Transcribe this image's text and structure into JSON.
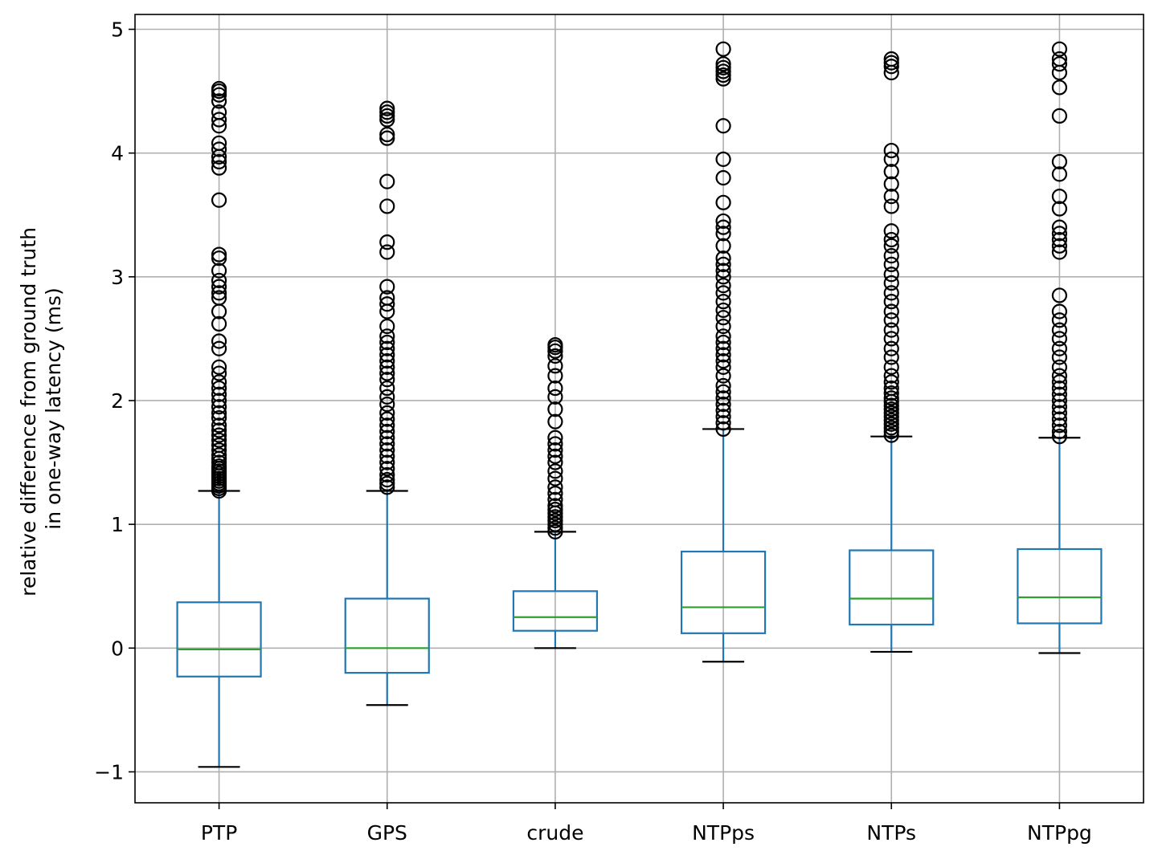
{
  "chart_data": {
    "type": "box",
    "title": "",
    "xlabel": "",
    "ylabel": [
      "relative difference from ground truth",
      "in one-way latency (ms)"
    ],
    "ylim": [
      -1.25,
      5.12
    ],
    "yticks": [
      -1,
      0,
      1,
      2,
      3,
      4,
      5
    ],
    "ytick_labels": [
      "−1",
      "0",
      "1",
      "2",
      "3",
      "4",
      "5"
    ],
    "grid": true,
    "colors": {
      "box": "#1f77b4",
      "median": "#2ca02c",
      "cap": "#000000",
      "flier": "#000000",
      "grid": "#b0b0b0"
    },
    "categories": [
      "PTP",
      "GPS",
      "crude",
      "NTPps",
      "NTPs",
      "NTPpg"
    ],
    "boxes": [
      {
        "name": "PTP",
        "whisker_low": -0.96,
        "q1": -0.23,
        "median": -0.01,
        "q3": 0.37,
        "whisker_high": 1.27,
        "fliers": [
          1.27,
          1.29,
          1.31,
          1.33,
          1.35,
          1.37,
          1.39,
          1.41,
          1.43,
          1.45,
          1.47,
          1.5,
          1.53,
          1.56,
          1.6,
          1.64,
          1.68,
          1.72,
          1.76,
          1.8,
          1.86,
          1.9,
          1.95,
          2.0,
          2.05,
          2.1,
          2.15,
          2.22,
          2.27,
          2.42,
          2.48,
          2.62,
          2.72,
          2.83,
          2.87,
          2.92,
          2.97,
          3.05,
          3.15,
          3.18,
          3.62,
          3.88,
          3.93,
          3.97,
          4.03,
          4.08,
          4.22,
          4.27,
          4.33,
          4.42,
          4.47,
          4.5,
          4.52
        ]
      },
      {
        "name": "GPS",
        "whisker_low": -0.46,
        "q1": -0.2,
        "median": 0.0,
        "q3": 0.4,
        "whisker_high": 1.27,
        "fliers": [
          1.3,
          1.33,
          1.36,
          1.4,
          1.45,
          1.5,
          1.55,
          1.6,
          1.65,
          1.7,
          1.75,
          1.8,
          1.85,
          1.9,
          1.97,
          2.03,
          2.1,
          2.17,
          2.22,
          2.27,
          2.32,
          2.37,
          2.42,
          2.47,
          2.52,
          2.6,
          2.72,
          2.78,
          2.83,
          2.92,
          3.2,
          3.28,
          3.57,
          3.77,
          4.12,
          4.15,
          4.27,
          4.3,
          4.33,
          4.36
        ]
      },
      {
        "name": "crude",
        "whisker_low": 0.0,
        "q1": 0.14,
        "median": 0.25,
        "q3": 0.46,
        "whisker_high": 0.94,
        "fliers": [
          0.94,
          0.97,
          1.0,
          1.03,
          1.06,
          1.09,
          1.12,
          1.15,
          1.2,
          1.25,
          1.3,
          1.37,
          1.43,
          1.5,
          1.55,
          1.6,
          1.65,
          1.7,
          1.83,
          1.93,
          2.03,
          2.1,
          2.2,
          2.28,
          2.36,
          2.4,
          2.43,
          2.45
        ]
      },
      {
        "name": "NTPps",
        "whisker_low": -0.11,
        "q1": 0.12,
        "median": 0.33,
        "q3": 0.78,
        "whisker_high": 1.77,
        "fliers": [
          1.77,
          1.82,
          1.87,
          1.92,
          1.97,
          2.02,
          2.07,
          2.12,
          2.2,
          2.27,
          2.32,
          2.37,
          2.42,
          2.47,
          2.52,
          2.6,
          2.67,
          2.73,
          2.8,
          2.87,
          2.93,
          3.0,
          3.05,
          3.1,
          3.15,
          3.25,
          3.35,
          3.4,
          3.45,
          3.6,
          3.8,
          3.95,
          4.22,
          4.6,
          4.63,
          4.66,
          4.69,
          4.72,
          4.84
        ]
      },
      {
        "name": "NTPs",
        "whisker_low": -0.03,
        "q1": 0.19,
        "median": 0.4,
        "q3": 0.79,
        "whisker_high": 1.71,
        "fliers": [
          1.72,
          1.75,
          1.78,
          1.81,
          1.84,
          1.87,
          1.9,
          1.93,
          1.96,
          1.99,
          2.02,
          2.06,
          2.1,
          2.15,
          2.2,
          2.27,
          2.35,
          2.42,
          2.5,
          2.57,
          2.65,
          2.72,
          2.8,
          2.87,
          2.95,
          3.02,
          3.1,
          3.17,
          3.25,
          3.3,
          3.37,
          3.57,
          3.65,
          3.75,
          3.85,
          3.95,
          4.02,
          4.65,
          4.7,
          4.73,
          4.76
        ]
      },
      {
        "name": "NTPpg",
        "whisker_low": -0.04,
        "q1": 0.2,
        "median": 0.41,
        "q3": 0.8,
        "whisker_high": 1.7,
        "fliers": [
          1.71,
          1.75,
          1.8,
          1.85,
          1.9,
          1.95,
          2.0,
          2.05,
          2.1,
          2.15,
          2.2,
          2.27,
          2.35,
          2.42,
          2.5,
          2.57,
          2.65,
          2.72,
          2.85,
          3.2,
          3.25,
          3.3,
          3.35,
          3.4,
          3.55,
          3.65,
          3.83,
          3.93,
          4.3,
          4.53,
          4.65,
          4.72,
          4.76,
          4.84
        ]
      }
    ]
  }
}
